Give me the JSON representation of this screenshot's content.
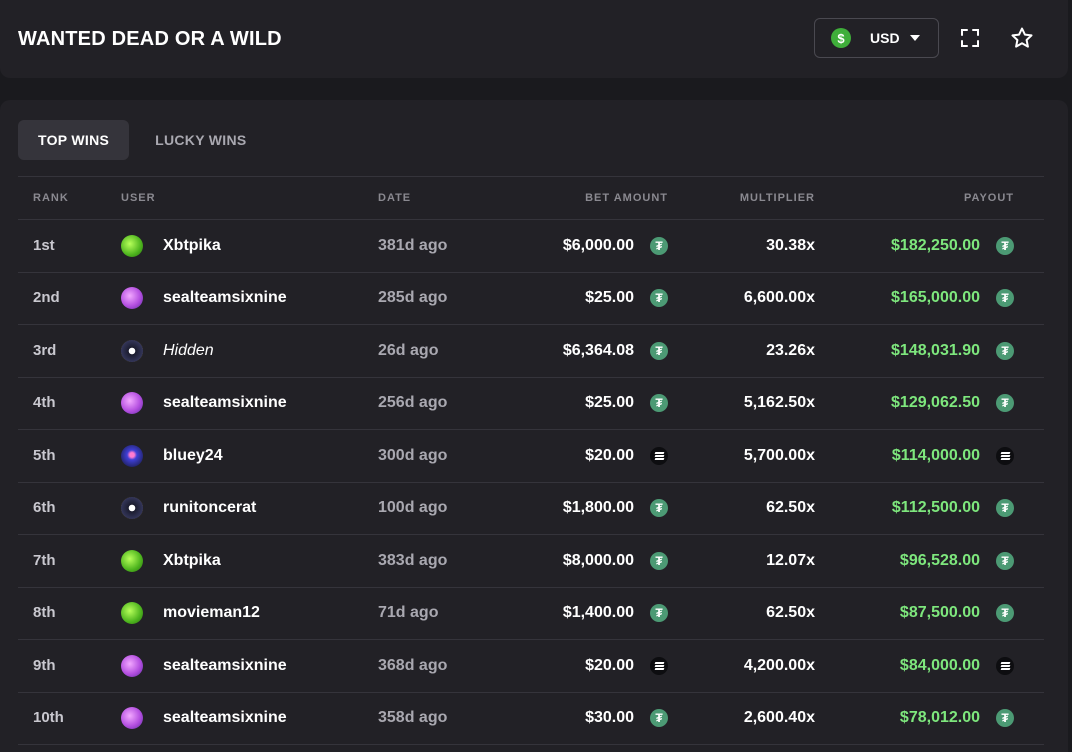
{
  "header": {
    "title": "WANTED DEAD OR A WILD",
    "currency": {
      "icon": "dollar-coin-icon",
      "label": "USD",
      "accent": "#3fae3a"
    },
    "fullscreen_icon": "fullscreen-icon",
    "favorite_icon": "star-icon"
  },
  "tabs": [
    {
      "label": "TOP WINS",
      "active": true
    },
    {
      "label": "LUCKY WINS",
      "active": false
    }
  ],
  "table": {
    "columns": {
      "rank": "RANK",
      "user": "USER",
      "date": "DATE",
      "bet": "BET AMOUNT",
      "multiplier": "MULTIPLIER",
      "payout": "PAYOUT"
    },
    "rows": [
      {
        "rank": "1st",
        "user": "Xbtpika",
        "avatar": "green",
        "date": "381d ago",
        "bet": "$6,000.00",
        "coin": "usdt",
        "multiplier": "30.38x",
        "payout": "$182,250.00"
      },
      {
        "rank": "2nd",
        "user": "sealteamsixnine",
        "avatar": "purple",
        "date": "285d ago",
        "bet": "$25.00",
        "coin": "usdt",
        "multiplier": "6,600.00x",
        "payout": "$165,000.00"
      },
      {
        "rank": "3rd",
        "user": "Hidden",
        "avatar": "dark",
        "hidden": true,
        "date": "26d ago",
        "bet": "$6,364.08",
        "coin": "usdt",
        "multiplier": "23.26x",
        "payout": "$148,031.90"
      },
      {
        "rank": "4th",
        "user": "sealteamsixnine",
        "avatar": "purple",
        "date": "256d ago",
        "bet": "$25.00",
        "coin": "usdt",
        "multiplier": "5,162.50x",
        "payout": "$129,062.50"
      },
      {
        "rank": "5th",
        "user": "bluey24",
        "avatar": "blue",
        "date": "300d ago",
        "bet": "$20.00",
        "coin": "sol",
        "multiplier": "5,700.00x",
        "payout": "$114,000.00"
      },
      {
        "rank": "6th",
        "user": "runitoncerat",
        "avatar": "dark",
        "date": "100d ago",
        "bet": "$1,800.00",
        "coin": "usdt",
        "multiplier": "62.50x",
        "payout": "$112,500.00"
      },
      {
        "rank": "7th",
        "user": "Xbtpika",
        "avatar": "green",
        "date": "383d ago",
        "bet": "$8,000.00",
        "coin": "usdt",
        "multiplier": "12.07x",
        "payout": "$96,528.00"
      },
      {
        "rank": "8th",
        "user": "movieman12",
        "avatar": "green",
        "date": "71d ago",
        "bet": "$1,400.00",
        "coin": "usdt",
        "multiplier": "62.50x",
        "payout": "$87,500.00"
      },
      {
        "rank": "9th",
        "user": "sealteamsixnine",
        "avatar": "purple",
        "date": "368d ago",
        "bet": "$20.00",
        "coin": "sol",
        "multiplier": "4,200.00x",
        "payout": "$84,000.00"
      },
      {
        "rank": "10th",
        "user": "sealteamsixnine",
        "avatar": "purple",
        "date": "358d ago",
        "bet": "$30.00",
        "coin": "usdt",
        "multiplier": "2,600.40x",
        "payout": "$78,012.00"
      }
    ]
  },
  "colors": {
    "background": "#1a1a1e",
    "panel": "#222126",
    "payout_green": "#7ee77d",
    "usdt_coin": "#4c9a74"
  }
}
